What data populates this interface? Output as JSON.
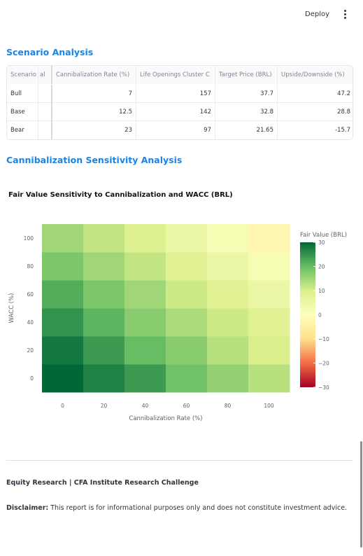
{
  "header": {
    "deploy_label": "Deploy",
    "menu_icon": "more-vertical-icon"
  },
  "scenario": {
    "title": "Scenario Analysis",
    "columns": [
      "Scenario",
      "al",
      "Cannibalization Rate (%)",
      "Life Openings Cluster C",
      "Target Price (BRL)",
      "Upside/Downside (%)"
    ],
    "rows": [
      [
        "Bull",
        "",
        "7",
        "157",
        "37.7",
        "47.2"
      ],
      [
        "Base",
        "",
        "12.5",
        "142",
        "32.8",
        "28.8"
      ],
      [
        "Bear",
        "",
        "23",
        "97",
        "21.65",
        "-15.7"
      ]
    ]
  },
  "sensitivity": {
    "title": "Cannibalization Sensitivity Analysis"
  },
  "chart_data": {
    "type": "heatmap",
    "title": "Fair Value Sensitivity to Cannibalization and WACC (BRL)",
    "xlabel": "Cannibalization Rate (%)",
    "ylabel": "WACC (%)",
    "x": [
      0,
      20,
      40,
      60,
      80,
      100
    ],
    "y": [
      0,
      20,
      40,
      60,
      80,
      100
    ],
    "z": [
      [
        33,
        27,
        24,
        19,
        16,
        13
      ],
      [
        28,
        24,
        20,
        17,
        13,
        10
      ],
      [
        25,
        21,
        17,
        14,
        11,
        8
      ],
      [
        22,
        18,
        15,
        11,
        8,
        5
      ],
      [
        18,
        15,
        12,
        8,
        5,
        2
      ],
      [
        15,
        12,
        9,
        5,
        2,
        -3
      ]
    ],
    "colorbar": {
      "title": "Fair Value (BRL)",
      "min": -30,
      "max": 30,
      "ticks": [
        30,
        20,
        10,
        0,
        -10,
        -20,
        -30
      ]
    },
    "colorscale": [
      "#a50026",
      "#f46d43",
      "#fee08b",
      "#ffffbf",
      "#d9ef8b",
      "#66bd63",
      "#006837"
    ]
  },
  "footer": {
    "line1": "Equity Research | CFA Institute Research Challenge",
    "disclaimer_label": "Disclaimer:",
    "disclaimer_text": " This report is for informational purposes only and does not constitute investment advice."
  }
}
